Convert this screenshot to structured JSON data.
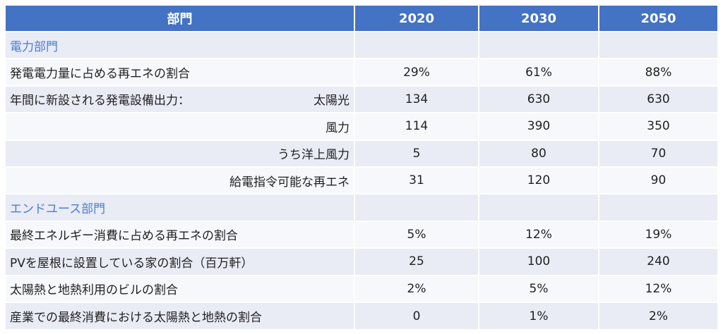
{
  "header": {
    "col0": "部門",
    "col1": "2020",
    "col2": "2030",
    "col3": "2050"
  },
  "rows": [
    {
      "label": "電力部門",
      "v1": "",
      "v2": "",
      "v3": ""
    },
    {
      "label": "発電電力量に占める再エネの割合",
      "v1": "29%",
      "v2": "61%",
      "v3": "88%"
    },
    {
      "label": "年間に新設される発電設備出力：",
      "sub": "太陽光",
      "v1": "134",
      "v2": "630",
      "v3": "630"
    },
    {
      "label": "風力",
      "v1": "114",
      "v2": "390",
      "v3": "350"
    },
    {
      "label": "うち洋上風力",
      "v1": "5",
      "v2": "80",
      "v3": "70"
    },
    {
      "label": "給電指令可能な再エネ",
      "v1": "31",
      "v2": "120",
      "v3": "90"
    },
    {
      "label": "エンドユース部門",
      "v1": "",
      "v2": "",
      "v3": ""
    },
    {
      "label": "最終エネルギー消費に占める再エネの割合",
      "v1": "5%",
      "v2": "12%",
      "v3": "19%"
    },
    {
      "label": "PVを屋根に設置している家の割合（百万軒）",
      "v1": "25",
      "v2": "100",
      "v3": "240"
    },
    {
      "label": "太陽熱と地熱利用のビルの割合",
      "v1": "2%",
      "v2": "5%",
      "v3": "12%"
    },
    {
      "label": "産業での最終消費における太陽熱と地熱の割合",
      "v1": "0",
      "v2": "1%",
      "v3": "2%"
    }
  ]
}
